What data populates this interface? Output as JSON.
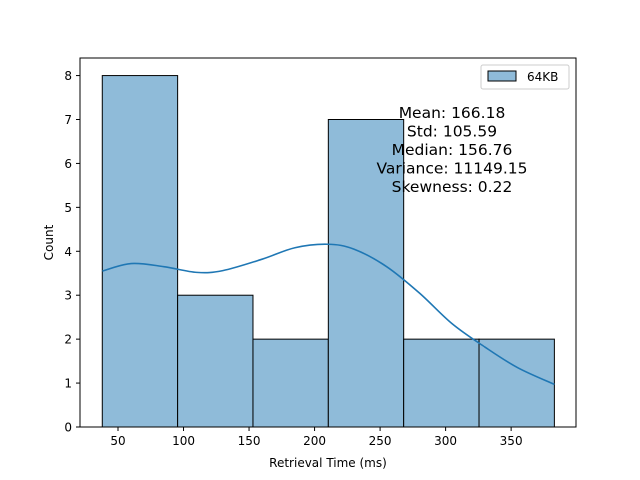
{
  "chart_data": {
    "type": "bar",
    "title": "",
    "xlabel": "Retrieval Time (ms)",
    "ylabel": "Count",
    "xlim": [
      21,
      399.5
    ],
    "ylim": [
      0,
      8.4
    ],
    "xticks": [
      50,
      100,
      150,
      200,
      250,
      300,
      350
    ],
    "yticks": [
      0,
      1,
      2,
      3,
      4,
      5,
      6,
      7,
      8
    ],
    "bin_edges": [
      38,
      95.5,
      153,
      210.5,
      268,
      325.5,
      383
    ],
    "series": [
      {
        "name": "64KB",
        "values": [
          8,
          3,
          2,
          7,
          2,
          2
        ]
      }
    ],
    "kde": {
      "x": [
        38,
        60,
        85,
        110,
        130,
        160,
        185,
        210,
        230,
        255,
        280,
        305,
        330,
        355,
        383
      ],
      "y": [
        3.55,
        3.72,
        3.65,
        3.52,
        3.56,
        3.82,
        4.08,
        4.16,
        4.05,
        3.65,
        3.05,
        2.35,
        1.82,
        1.35,
        0.97
      ]
    },
    "legend": {
      "position": "top-right",
      "entries": [
        "64KB"
      ]
    },
    "annotation": [
      "Mean: 166.18",
      "Std: 105.59",
      "Median: 156.76",
      "Variance: 11149.15",
      "Skewness: 0.22"
    ],
    "grid": false,
    "colors": {
      "bar_fill": "#8fbbd9",
      "bar_edge": "#000000",
      "kde_line": "#1f77b4"
    }
  }
}
